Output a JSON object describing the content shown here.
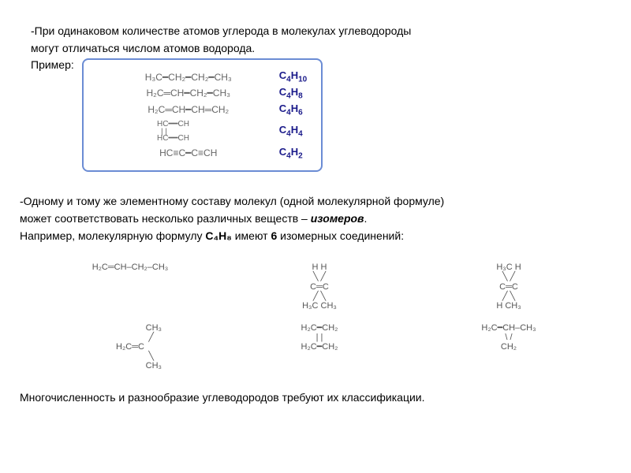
{
  "intro": {
    "line1": "-При одинаковом количестве атомов углерода в молекулах углеводороды",
    "line2": " могут отличаться числом атомов водорода.",
    "example_label": "Пример:"
  },
  "box_rows": [
    {
      "struct": "H₃C━CH₂━CH₂━CH₃",
      "formula_c": "C",
      "c": "4",
      "formula_h": "H",
      "h": "10"
    },
    {
      "struct": "H₂C═CH━CH₂━CH₃",
      "formula_c": "C",
      "c": "4",
      "formula_h": "H",
      "h": "8"
    },
    {
      "struct": "H₂C═CH━CH═CH₂",
      "formula_c": "C",
      "c": "4",
      "formula_h": "H",
      "h": "6"
    },
    {
      "struct": "HC━CH / HC━CH (cyclo)",
      "display": "cyclobutadiene",
      "formula_c": "C",
      "c": "4",
      "formula_h": "H",
      "h": "4"
    },
    {
      "struct": "HC≡C━C≡CH",
      "formula_c": "C",
      "c": "4",
      "formula_h": "H",
      "h": "2"
    }
  ],
  "middle": {
    "line1": "-Одному и тому же элементному составу молекул (одной молекулярной формуле)",
    "line2": " может соответствовать несколько различных веществ – ",
    "isomer_word": "изомеров",
    "line3a": "Например, молекулярную формулу ",
    "formula": "С₄Н₈",
    "line3b": " имеют ",
    "six": "6",
    "line3c": " изомерных соединений:"
  },
  "isomers": {
    "r1c1": "H₂C═CH–CH₂–CH₃",
    "r1c2_top": "H         H",
    "r1c2_mid": "C═C",
    "r1c2_bot": "H₃C      CH₃",
    "r1c3_top": "H₃C       H",
    "r1c3_mid": "C═C",
    "r1c3_bot": "H       CH₃",
    "r2c1_top": "CH₃",
    "r2c1_mid": "H₂C═C",
    "r2c1_bot": "CH₃",
    "r2c2_top": "H₂C━CH₂",
    "r2c2_mid": " |          | ",
    "r2c2_bot": "H₂C━CH₂",
    "r2c3_top": "H₂C━CH–CH₃",
    "r2c3_bot": "   \\   /",
    "r2c3_bot2": "CH₂"
  },
  "final": "Многочисленность и разнообразие углеводородов требуют их классификации."
}
